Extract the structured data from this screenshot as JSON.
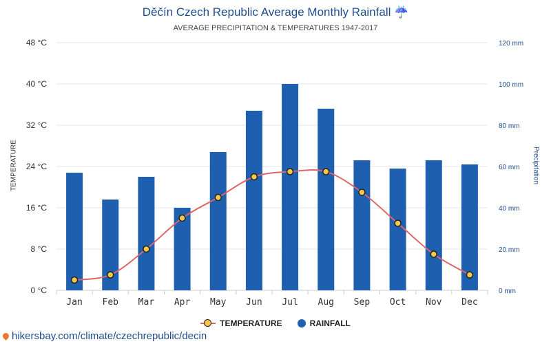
{
  "title": "Děčín Czech Republic Average Monthly Rainfall ☔",
  "subtitle": "AVERAGE PRECIPITATION & TEMPERATURES 1947-2017",
  "footer_url": "hikersbay.com/climate/czechrepublic/decin",
  "colors": {
    "bar": "#1f5fb0",
    "line": "#e06666",
    "marker": "#f2c94c",
    "grid": "#e5e5e5"
  },
  "chart_data": {
    "type": "bar",
    "categories": [
      "Jan",
      "Feb",
      "Mar",
      "Apr",
      "May",
      "Jun",
      "Jul",
      "Aug",
      "Sep",
      "Oct",
      "Nov",
      "Dec"
    ],
    "series": [
      {
        "name": "RAINFALL",
        "type": "bar",
        "axis": "right",
        "values": [
          57,
          44,
          55,
          40,
          67,
          87,
          100,
          88,
          63,
          59,
          63,
          61
        ]
      },
      {
        "name": "TEMPERATURE",
        "type": "line",
        "axis": "left",
        "values": [
          2,
          3,
          8,
          14,
          18,
          22,
          23,
          23,
          19,
          13,
          7,
          3
        ]
      }
    ],
    "ylabel": "TEMPERATURE",
    "ylabel_right": "Precipitation",
    "ylim": [
      0,
      48
    ],
    "ylim_right": [
      0,
      120
    ],
    "yticks": [
      "0 °C",
      "8 °C",
      "16 °C",
      "24 °C",
      "32 °C",
      "40 °C",
      "48 °C"
    ],
    "yticks_right": [
      "0 mm",
      "20 mm",
      "40 mm",
      "60 mm",
      "80 mm",
      "100 mm",
      "120 mm"
    ],
    "legend": [
      "TEMPERATURE",
      "RAINFALL"
    ],
    "legend_position": "bottom",
    "grid": true
  }
}
